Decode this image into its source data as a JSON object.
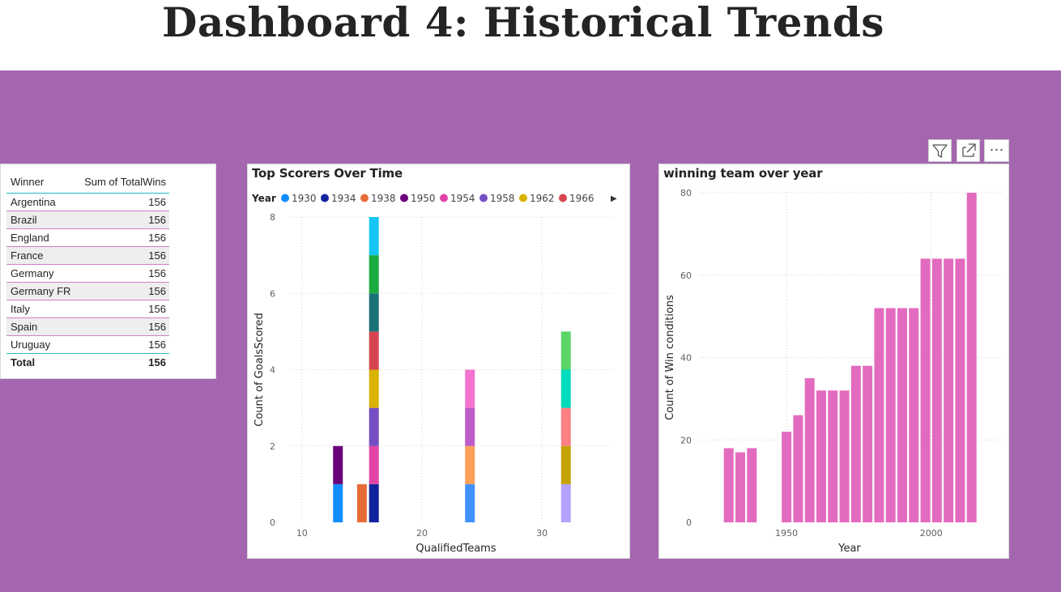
{
  "page": {
    "title": "Dashboard 4: Historical Trends"
  },
  "colors": {
    "canvas": "#a566b0",
    "table_header_rule": "#27b7c4",
    "table_row_rule": "#d07fcb",
    "bar_pink": "#e36bbf"
  },
  "toolbar": {
    "icons": [
      "filter-icon",
      "focus-mode-icon",
      "more-options-icon"
    ],
    "more_label": "⋯"
  },
  "table": {
    "headers": [
      "Winner",
      "Sum of TotalWins"
    ],
    "rows": [
      {
        "winner": "Argentina",
        "wins": "156"
      },
      {
        "winner": "Brazil",
        "wins": "156"
      },
      {
        "winner": "England",
        "wins": "156"
      },
      {
        "winner": "France",
        "wins": "156"
      },
      {
        "winner": "Germany",
        "wins": "156"
      },
      {
        "winner": "Germany FR",
        "wins": "156"
      },
      {
        "winner": "Italy",
        "wins": "156"
      },
      {
        "winner": "Spain",
        "wins": "156"
      },
      {
        "winner": "Uruguay",
        "wins": "156"
      }
    ],
    "total": {
      "label": "Total",
      "wins": "156"
    }
  },
  "chart_data": [
    {
      "type": "bar",
      "stacked": true,
      "title": "Top Scorers Over Time",
      "xlabel": "QualifiedTeams",
      "ylabel": "Count of GoalsScored",
      "legend_title": "Year",
      "legend_position": "top-left",
      "legend_more_icon": "▶",
      "legend": [
        {
          "name": "1930",
          "color": "#118dff"
        },
        {
          "name": "1934",
          "color": "#12239e"
        },
        {
          "name": "1938",
          "color": "#e66c37"
        },
        {
          "name": "1950",
          "color": "#6b007b"
        },
        {
          "name": "1954",
          "color": "#e044a7"
        },
        {
          "name": "1958",
          "color": "#744ec2"
        },
        {
          "name": "1962",
          "color": "#d9b300"
        },
        {
          "name": "1966",
          "color": "#d64550"
        }
      ],
      "xlim": [
        9,
        36
      ],
      "ylim": [
        0,
        8
      ],
      "xticks": [
        10,
        20,
        30
      ],
      "yticks": [
        0,
        2,
        4,
        6,
        8
      ],
      "grid": true,
      "stacks": [
        {
          "x": 13,
          "segments": [
            {
              "value": 1,
              "color": "#118dff"
            },
            {
              "value": 1,
              "color": "#6b007b"
            }
          ]
        },
        {
          "x": 15,
          "segments": [
            {
              "value": 1,
              "color": "#e66c37"
            }
          ]
        },
        {
          "x": 16,
          "segments": [
            {
              "value": 1,
              "color": "#12239e"
            },
            {
              "value": 1,
              "color": "#e044a7"
            },
            {
              "value": 1,
              "color": "#744ec2"
            },
            {
              "value": 1,
              "color": "#d9b300"
            },
            {
              "value": 1,
              "color": "#d64550"
            },
            {
              "value": 1,
              "color": "#197278"
            },
            {
              "value": 1,
              "color": "#1aab40"
            },
            {
              "value": 1,
              "color": "#15c6f4"
            }
          ]
        },
        {
          "x": 24,
          "segments": [
            {
              "value": 1,
              "color": "#4092ff"
            },
            {
              "value": 1,
              "color": "#ffa058"
            },
            {
              "value": 1,
              "color": "#be5dc9"
            },
            {
              "value": 1,
              "color": "#f472d0"
            }
          ]
        },
        {
          "x": 32,
          "segments": [
            {
              "value": 1,
              "color": "#b5a1ff"
            },
            {
              "value": 1,
              "color": "#c4a200"
            },
            {
              "value": 1,
              "color": "#fd8082"
            },
            {
              "value": 1,
              "color": "#00dbbc"
            },
            {
              "value": 1,
              "color": "#5bd667"
            }
          ]
        }
      ]
    },
    {
      "type": "bar",
      "title": "winning team over year",
      "xlabel": "Year",
      "ylabel": "Count of Win conditions",
      "color": "#e36bbf",
      "xlim": [
        1920,
        2025
      ],
      "ylim": [
        0,
        80
      ],
      "xticks": [
        1950,
        2000
      ],
      "yticks": [
        0,
        20,
        40,
        60,
        80
      ],
      "grid": true,
      "x": [
        1930,
        1934,
        1938,
        1950,
        1954,
        1958,
        1962,
        1966,
        1970,
        1974,
        1978,
        1982,
        1986,
        1990,
        1994,
        1998,
        2002,
        2006,
        2010,
        2014
      ],
      "values": [
        18,
        17,
        18,
        22,
        26,
        35,
        32,
        32,
        32,
        38,
        38,
        52,
        52,
        52,
        52,
        64,
        64,
        64,
        64,
        80
      ]
    }
  ]
}
